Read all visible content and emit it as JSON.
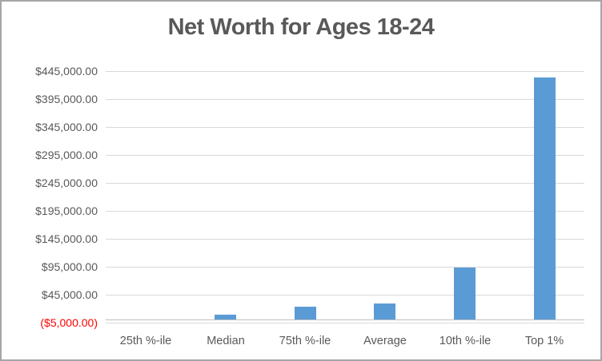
{
  "chart_data": {
    "type": "bar",
    "title": "Net Worth for Ages 18-24",
    "categories": [
      "25th %-ile",
      "Median",
      "75th %-ile",
      "Average",
      "10th %-ile",
      "Top 1%"
    ],
    "values": [
      0,
      8500,
      22500,
      28000,
      92500,
      433000
    ],
    "xlabel": "",
    "ylabel": "",
    "ylim": [
      -5000,
      445000
    ],
    "y_tick_step": 50000,
    "grid": true,
    "legend": false,
    "y_ticks": [
      {
        "value": 445000,
        "label": "$445,000.00",
        "negative": false
      },
      {
        "value": 395000,
        "label": "$395,000.00",
        "negative": false
      },
      {
        "value": 345000,
        "label": "$345,000.00",
        "negative": false
      },
      {
        "value": 295000,
        "label": "$295,000.00",
        "negative": false
      },
      {
        "value": 245000,
        "label": "$245,000.00",
        "negative": false
      },
      {
        "value": 195000,
        "label": "$195,000.00",
        "negative": false
      },
      {
        "value": 145000,
        "label": "$145,000.00",
        "negative": false
      },
      {
        "value": 95000,
        "label": "$95,000.00",
        "negative": false
      },
      {
        "value": 45000,
        "label": "$45,000.00",
        "negative": false
      },
      {
        "value": -5000,
        "label": "($5,000.00)",
        "negative": true
      }
    ],
    "colors": {
      "bar": "#5B9BD5",
      "text": "#595959",
      "gridline": "#D9D9D9",
      "axis_line": "#BFBFBF",
      "negative_tick": "#FF0000",
      "border": "#A6A6A6",
      "background": "#FFFFFF"
    }
  }
}
